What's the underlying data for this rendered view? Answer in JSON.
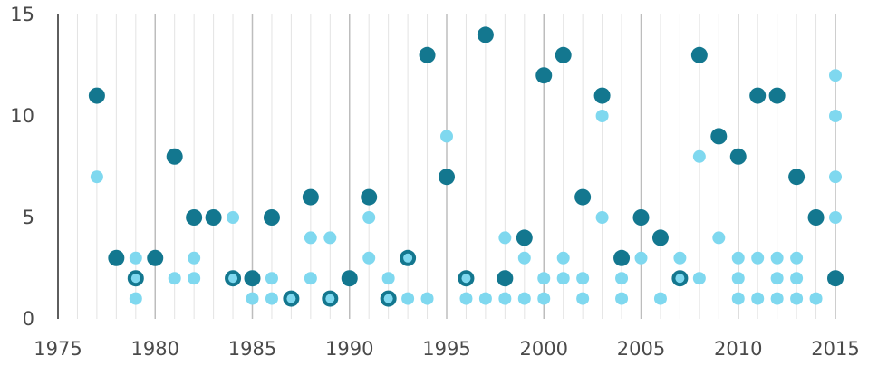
{
  "chart_data": {
    "type": "scatter",
    "title": "",
    "xlabel": "",
    "ylabel": "",
    "xlim": [
      1975,
      2015
    ],
    "ylim": [
      0,
      15
    ],
    "grid": {
      "major_x": true,
      "minor_x": true,
      "y": false
    },
    "x_ticks": [
      1975,
      1980,
      1985,
      1990,
      1995,
      2000,
      2005,
      2010,
      2015
    ],
    "y_ticks": [
      0,
      5,
      10,
      15
    ],
    "colors": {
      "dark": "#13778f",
      "light": "#7fd8ef",
      "grid_major": "#bdbdbd",
      "grid_minor": "#e3e3e3",
      "axis": "#333333"
    },
    "series": [
      {
        "style": "dark",
        "points": [
          [
            1977,
            11
          ],
          [
            1978,
            3
          ],
          [
            1979,
            2
          ],
          [
            1980,
            3
          ],
          [
            1981,
            8
          ],
          [
            1982,
            5
          ],
          [
            1983,
            5
          ],
          [
            1984,
            2
          ],
          [
            1985,
            2
          ],
          [
            1986,
            5
          ],
          [
            1987,
            1
          ],
          [
            1988,
            6
          ],
          [
            1989,
            1
          ],
          [
            1990,
            2
          ],
          [
            1991,
            6
          ],
          [
            1992,
            1
          ],
          [
            1993,
            3
          ],
          [
            1994,
            13
          ],
          [
            1995,
            7
          ],
          [
            1996,
            2
          ],
          [
            1997,
            14
          ],
          [
            1998,
            2
          ],
          [
            1999,
            4
          ],
          [
            2000,
            12
          ],
          [
            2001,
            13
          ],
          [
            2002,
            6
          ],
          [
            2003,
            11
          ],
          [
            2004,
            3
          ],
          [
            2005,
            5
          ],
          [
            2006,
            4
          ],
          [
            2007,
            2
          ],
          [
            2008,
            13
          ],
          [
            2009,
            9
          ],
          [
            2010,
            8
          ],
          [
            2011,
            11
          ],
          [
            2012,
            11
          ],
          [
            2013,
            7
          ],
          [
            2014,
            5
          ],
          [
            2015,
            2
          ]
        ]
      },
      {
        "style": "light",
        "points": [
          [
            1977,
            7
          ],
          [
            1979,
            3
          ],
          [
            1979,
            2
          ],
          [
            1979,
            1
          ],
          [
            1981,
            2
          ],
          [
            1982,
            3
          ],
          [
            1982,
            2
          ],
          [
            1984,
            5
          ],
          [
            1984,
            2
          ],
          [
            1985,
            1
          ],
          [
            1986,
            2
          ],
          [
            1986,
            1
          ],
          [
            1987,
            1
          ],
          [
            1988,
            4
          ],
          [
            1988,
            2
          ],
          [
            1989,
            4
          ],
          [
            1989,
            1
          ],
          [
            1991,
            5
          ],
          [
            1991,
            3
          ],
          [
            1992,
            2
          ],
          [
            1992,
            1
          ],
          [
            1993,
            3
          ],
          [
            1993,
            1
          ],
          [
            1994,
            1
          ],
          [
            1995,
            9
          ],
          [
            1996,
            2
          ],
          [
            1996,
            1
          ],
          [
            1997,
            1
          ],
          [
            1998,
            4
          ],
          [
            1998,
            1
          ],
          [
            1999,
            3
          ],
          [
            1999,
            1
          ],
          [
            2000,
            2
          ],
          [
            2000,
            1
          ],
          [
            2001,
            3
          ],
          [
            2001,
            2
          ],
          [
            2002,
            2
          ],
          [
            2002,
            1
          ],
          [
            2003,
            10
          ],
          [
            2003,
            5
          ],
          [
            2004,
            2
          ],
          [
            2004,
            1
          ],
          [
            2005,
            3
          ],
          [
            2006,
            1
          ],
          [
            2007,
            3
          ],
          [
            2007,
            2
          ],
          [
            2008,
            8
          ],
          [
            2008,
            2
          ],
          [
            2009,
            4
          ],
          [
            2010,
            3
          ],
          [
            2010,
            2
          ],
          [
            2010,
            1
          ],
          [
            2011,
            3
          ],
          [
            2011,
            1
          ],
          [
            2012,
            3
          ],
          [
            2012,
            2
          ],
          [
            2012,
            1
          ],
          [
            2013,
            3
          ],
          [
            2013,
            2
          ],
          [
            2013,
            1
          ],
          [
            2014,
            1
          ],
          [
            2015,
            12
          ],
          [
            2015,
            10
          ],
          [
            2015,
            7
          ],
          [
            2015,
            5
          ]
        ]
      }
    ]
  }
}
